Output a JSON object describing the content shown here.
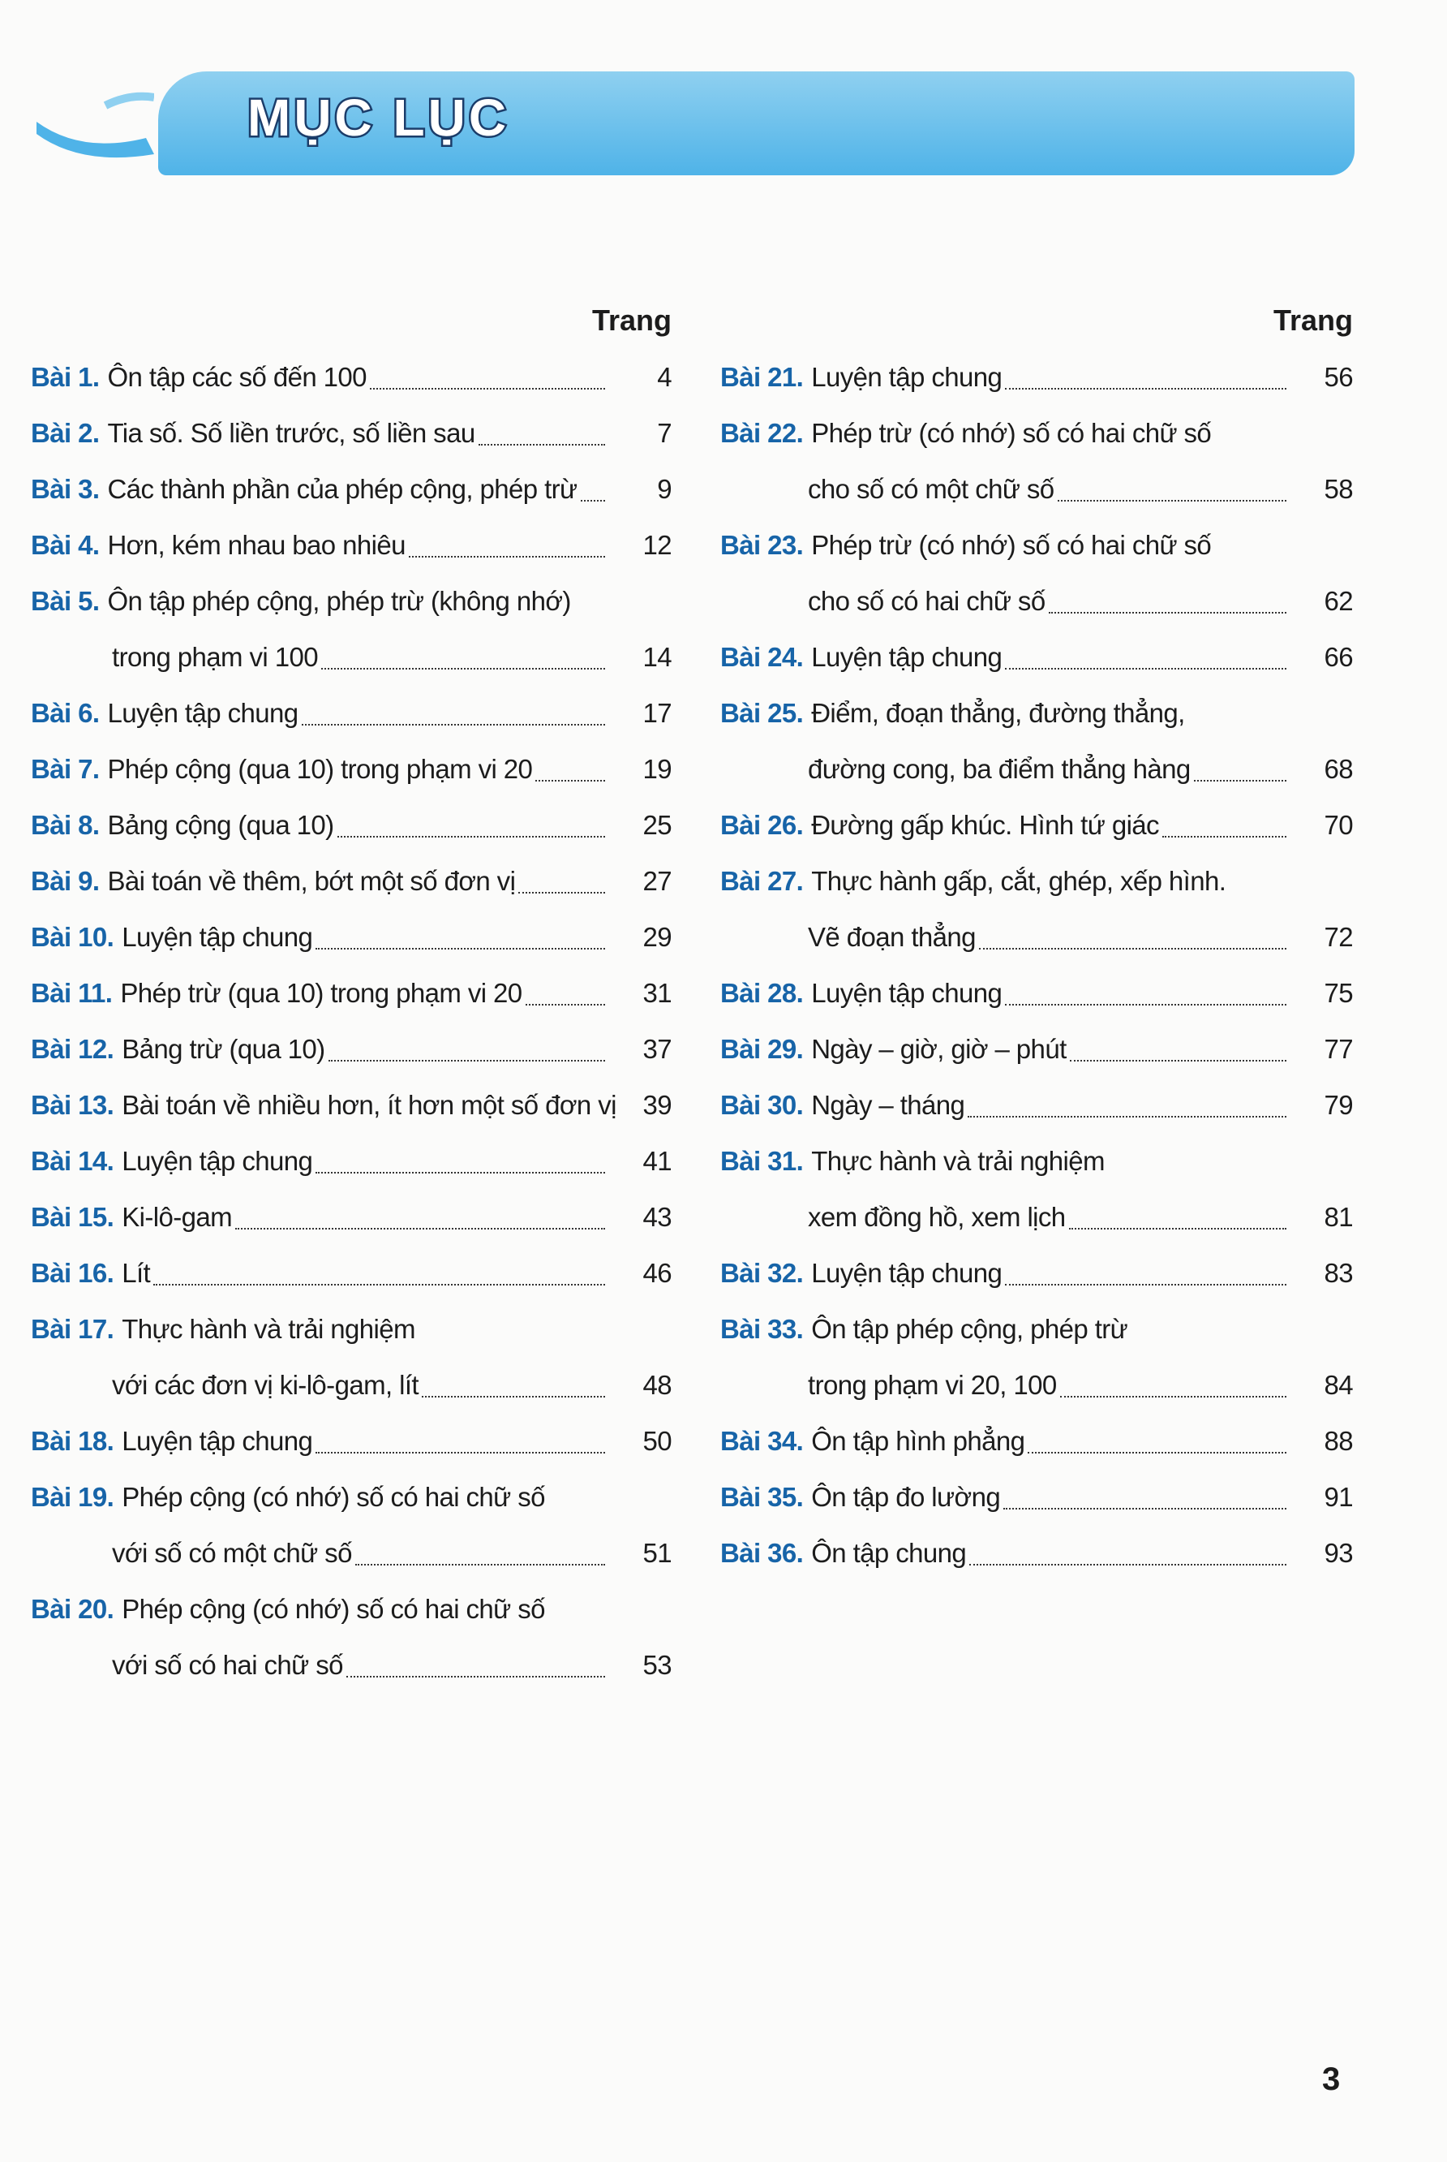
{
  "header": {
    "title": "MỤC LỤC"
  },
  "columns": [
    {
      "page_heading": "Trang",
      "entries": [
        {
          "number": "Bài 1.",
          "lines": [
            "Ôn tập các số đến 100"
          ],
          "page": "4"
        },
        {
          "number": "Bài 2.",
          "lines": [
            "Tia số. Số liền trước, số liền sau"
          ],
          "page": "7"
        },
        {
          "number": "Bài 3.",
          "lines": [
            "Các thành phần của phép cộng, phép trừ"
          ],
          "page": "9"
        },
        {
          "number": "Bài 4.",
          "lines": [
            "Hơn, kém nhau bao nhiêu"
          ],
          "page": "12"
        },
        {
          "number": "Bài 5.",
          "lines": [
            "Ôn tập phép cộng, phép trừ (không nhớ)",
            "trong phạm vi 100"
          ],
          "page": "14"
        },
        {
          "number": "Bài 6.",
          "lines": [
            "Luyện tập chung"
          ],
          "page": "17"
        },
        {
          "number": "Bài 7.",
          "lines": [
            "Phép cộng (qua 10) trong phạm vi 20"
          ],
          "page": "19"
        },
        {
          "number": "Bài 8.",
          "lines": [
            "Bảng cộng (qua 10)"
          ],
          "page": "25"
        },
        {
          "number": "Bài 9.",
          "lines": [
            "Bài toán về thêm, bớt một số đơn vị"
          ],
          "page": "27"
        },
        {
          "number": "Bài 10.",
          "lines": [
            "Luyện tập chung"
          ],
          "page": "29"
        },
        {
          "number": "Bài 11.",
          "lines": [
            "Phép trừ (qua 10) trong phạm vi 20"
          ],
          "page": "31"
        },
        {
          "number": "Bài 12.",
          "lines": [
            "Bảng trừ (qua 10)"
          ],
          "page": "37"
        },
        {
          "number": "Bài 13.",
          "lines": [
            "Bài toán về nhiều hơn, ít hơn một số đơn vị"
          ],
          "page": "39"
        },
        {
          "number": "Bài 14.",
          "lines": [
            "Luyện tập chung"
          ],
          "page": "41"
        },
        {
          "number": "Bài 15.",
          "lines": [
            "Ki-lô-gam"
          ],
          "page": "43"
        },
        {
          "number": "Bài 16.",
          "lines": [
            "Lít"
          ],
          "page": "46"
        },
        {
          "number": "Bài 17.",
          "lines": [
            "Thực hành và trải nghiệm",
            "với các đơn vị ki-lô-gam, lít"
          ],
          "page": "48"
        },
        {
          "number": "Bài 18.",
          "lines": [
            "Luyện tập chung"
          ],
          "page": "50"
        },
        {
          "number": "Bài 19.",
          "lines": [
            "Phép cộng (có nhớ) số có hai chữ số",
            "với số có một chữ số"
          ],
          "page": "51"
        },
        {
          "number": "Bài 20.",
          "lines": [
            "Phép cộng (có nhớ) số có hai chữ số",
            "với số có hai chữ số"
          ],
          "page": "53"
        }
      ]
    },
    {
      "page_heading": "Trang",
      "entries": [
        {
          "number": "Bài 21.",
          "lines": [
            "Luyện tập chung"
          ],
          "page": "56"
        },
        {
          "number": "Bài 22.",
          "lines": [
            "Phép trừ (có nhớ) số có hai chữ số",
            "cho số có một chữ số"
          ],
          "page": "58"
        },
        {
          "number": "Bài 23.",
          "lines": [
            "Phép trừ (có nhớ) số có hai chữ số",
            "cho số có hai chữ số"
          ],
          "page": "62"
        },
        {
          "number": "Bài 24.",
          "lines": [
            "Luyện tập chung"
          ],
          "page": "66"
        },
        {
          "number": "Bài 25.",
          "lines": [
            "Điểm, đoạn thẳng, đường thẳng,",
            "đường cong, ba điểm thẳng hàng"
          ],
          "page": "68"
        },
        {
          "number": "Bài 26.",
          "lines": [
            "Đường gấp khúc. Hình tứ giác"
          ],
          "page": "70"
        },
        {
          "number": "Bài 27.",
          "lines": [
            "Thực hành gấp, cắt, ghép, xếp hình.",
            "Vẽ đoạn thẳng"
          ],
          "page": "72"
        },
        {
          "number": "Bài 28.",
          "lines": [
            "Luyện tập chung"
          ],
          "page": "75"
        },
        {
          "number": "Bài 29.",
          "lines": [
            "Ngày – giờ, giờ – phút"
          ],
          "page": "77"
        },
        {
          "number": "Bài 30.",
          "lines": [
            "Ngày – tháng"
          ],
          "page": "79"
        },
        {
          "number": "Bài 31.",
          "lines": [
            "Thực hành và trải nghiệm",
            "xem đồng hồ, xem lịch"
          ],
          "page": "81"
        },
        {
          "number": "Bài 32.",
          "lines": [
            "Luyện tập chung"
          ],
          "page": "83"
        },
        {
          "number": "Bài 33.",
          "lines": [
            "Ôn tập phép cộng, phép trừ",
            "trong phạm vi 20, 100"
          ],
          "page": "84"
        },
        {
          "number": "Bài 34.",
          "lines": [
            "Ôn tập hình phẳng"
          ],
          "page": "88"
        },
        {
          "number": "Bài 35.",
          "lines": [
            "Ôn tập đo lường"
          ],
          "page": "91"
        },
        {
          "number": "Bài 36.",
          "lines": [
            "Ôn tập chung"
          ],
          "page": "93"
        }
      ]
    }
  ],
  "footer": {
    "page_number": "3"
  }
}
